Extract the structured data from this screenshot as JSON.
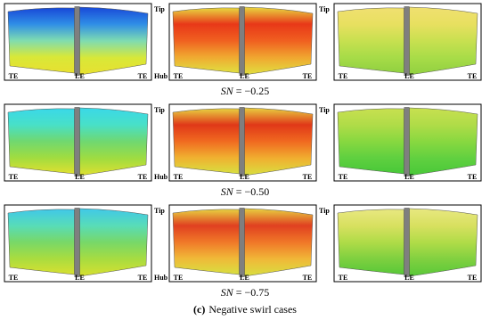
{
  "rows": [
    {
      "caption": {
        "symbol": "SN",
        "value": "= −0.25"
      },
      "panels": [
        {
          "labels": [
            "TE",
            "LE",
            "TE"
          ],
          "tip": "Tip",
          "hub": "Hub"
        },
        {
          "labels": [
            "TE",
            "LE",
            "TE"
          ],
          "tip": "Tip"
        },
        {
          "labels": [
            "TE",
            "LE",
            "TE"
          ]
        }
      ]
    },
    {
      "caption": {
        "symbol": "SN",
        "value": "= −0.50"
      },
      "panels": [
        {
          "labels": [
            "TE",
            "LE",
            "TE"
          ],
          "tip": "Tip",
          "hub": "Hub"
        },
        {
          "labels": [
            "TE",
            "LE",
            "TE"
          ],
          "tip": "Tip"
        },
        {
          "labels": [
            "TE",
            "LE",
            "TE"
          ]
        }
      ]
    },
    {
      "caption": {
        "symbol": "SN",
        "value": "= −0.75"
      },
      "panels": [
        {
          "labels": [
            "TE",
            "LE",
            "TE"
          ],
          "tip": "Tip",
          "hub": "Hub"
        },
        {
          "labels": [
            "TE",
            "LE",
            "TE"
          ],
          "tip": "Tip"
        },
        {
          "labels": [
            "TE",
            "LE",
            "TE"
          ]
        }
      ]
    }
  ],
  "figure_caption": {
    "label": "(c)",
    "text": "Negative swirl cases"
  }
}
